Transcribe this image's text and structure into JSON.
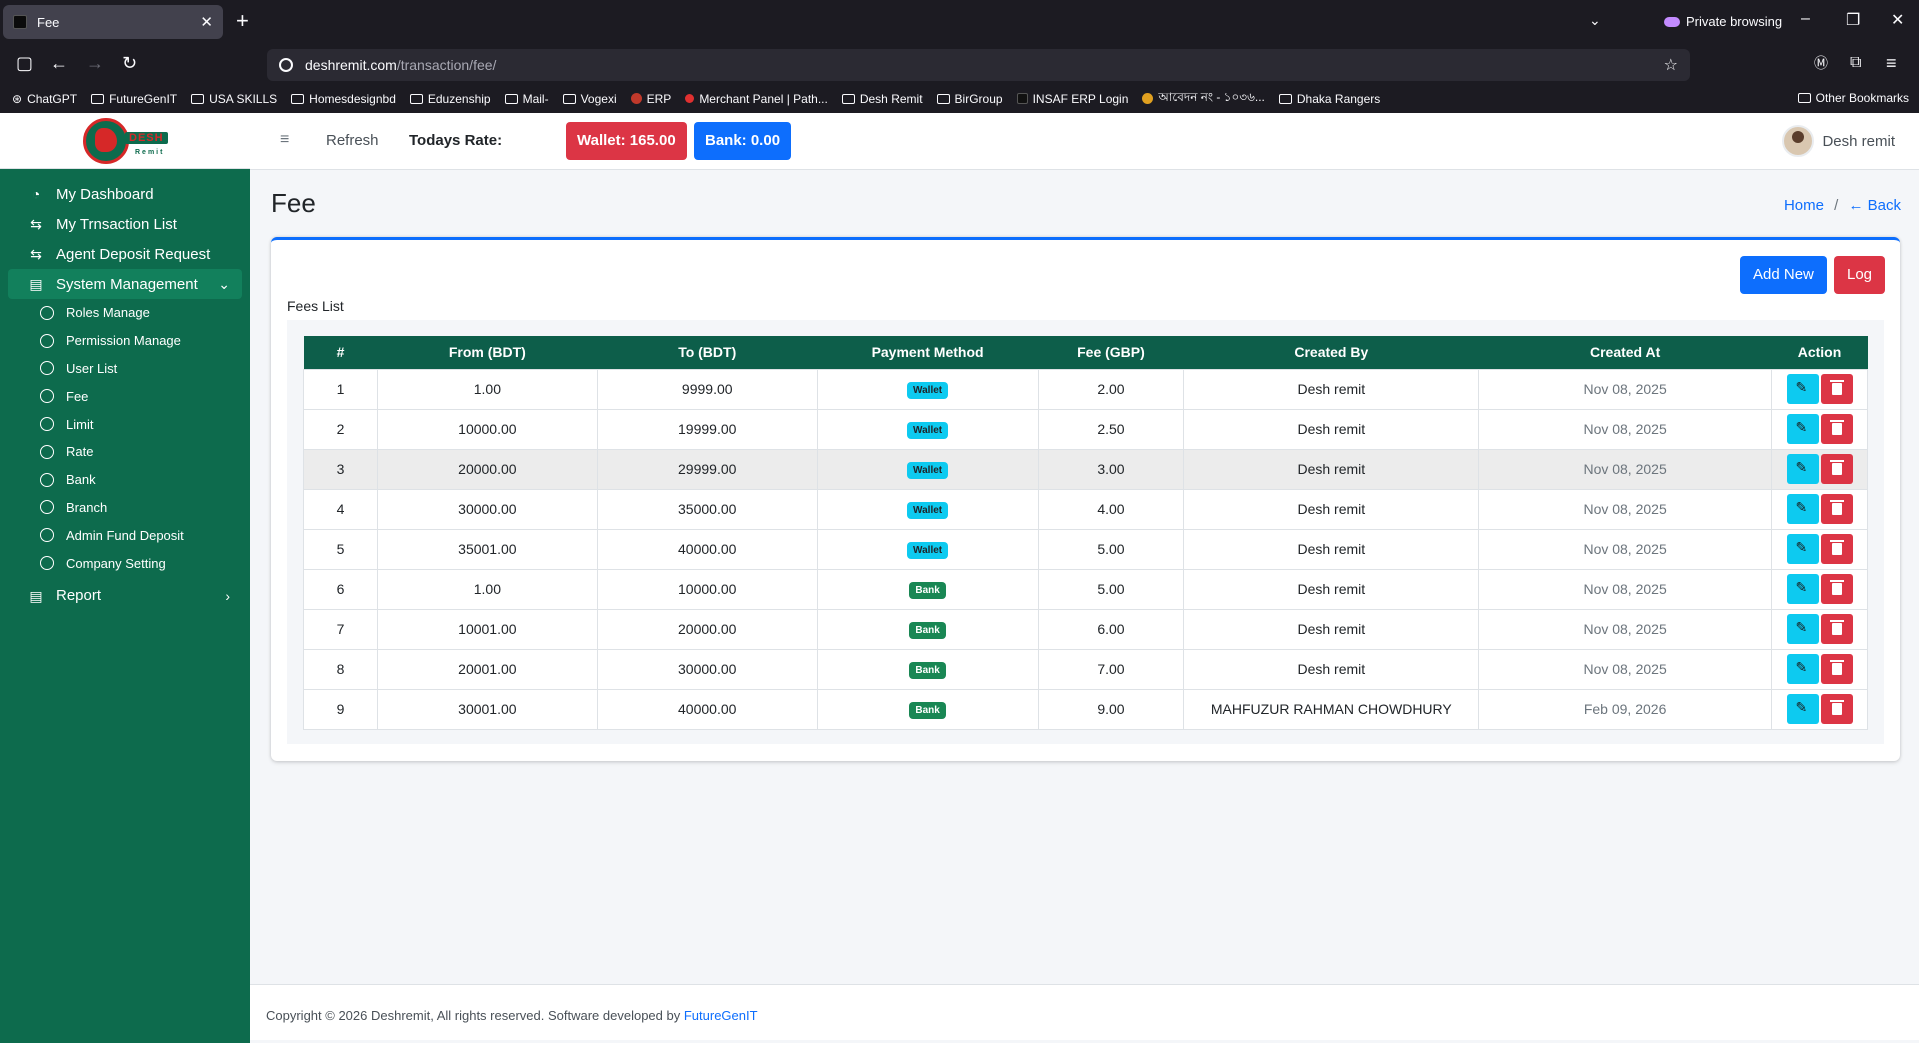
{
  "browser": {
    "tab_title": "Fee",
    "url_host": "deshremit.com",
    "url_path": "/transaction/fee/",
    "private_label": "Private browsing",
    "bookmarks": [
      "ChatGPT",
      "FutureGenIT",
      "USA SKILLS",
      "Homesdesignbd",
      "Eduzenship",
      "Mail-",
      "Vogexi",
      "ERP",
      "Merchant Panel | Path...",
      "Desh Remit",
      "BirGroup",
      "INSAF ERP Login",
      "আবেদন নং - ১০৩৬...",
      "Dhaka Rangers"
    ],
    "other_bookmarks": "Other Bookmarks"
  },
  "sidebar": {
    "brand": "DESH",
    "brand_sub": "Remit",
    "items": [
      {
        "label": "My Dashboard",
        "icon": "dashboard-icon"
      },
      {
        "label": "My Trnsaction List",
        "icon": "transfer-icon"
      },
      {
        "label": "Agent Deposit Request",
        "icon": "transfer-icon"
      },
      {
        "label": "System Management",
        "icon": "clipboard-icon"
      }
    ],
    "sub_items": [
      "Roles Manage",
      "Permission Manage",
      "User List",
      "Fee",
      "Limit",
      "Rate",
      "Bank",
      "Branch",
      "Admin Fund Deposit",
      "Company Setting"
    ],
    "report": "Report"
  },
  "topbar": {
    "refresh": "Refresh",
    "todays_rate": "Todays Rate:",
    "wallet": "Wallet: 165.00",
    "bank": "Bank: 0.00",
    "user": "Desh remit"
  },
  "page": {
    "title": "Fee",
    "breadcrumb_home": "Home",
    "breadcrumb_sep": "/",
    "breadcrumb_back": "← Back",
    "add_new": "Add New",
    "log": "Log",
    "list_label": "Fees List"
  },
  "table": {
    "headers": [
      "#",
      "From (BDT)",
      "To (BDT)",
      "Payment Method",
      "Fee (GBP)",
      "Created By",
      "Created At",
      "Action"
    ],
    "rows": [
      [
        "1",
        "1.00",
        "9999.00",
        "Wallet",
        "2.00",
        "Desh remit",
        "Nov 08, 2025"
      ],
      [
        "2",
        "10000.00",
        "19999.00",
        "Wallet",
        "2.50",
        "Desh remit",
        "Nov 08, 2025"
      ],
      [
        "3",
        "20000.00",
        "29999.00",
        "Wallet",
        "3.00",
        "Desh remit",
        "Nov 08, 2025"
      ],
      [
        "4",
        "30000.00",
        "35000.00",
        "Wallet",
        "4.00",
        "Desh remit",
        "Nov 08, 2025"
      ],
      [
        "5",
        "35001.00",
        "40000.00",
        "Wallet",
        "5.00",
        "Desh remit",
        "Nov 08, 2025"
      ],
      [
        "6",
        "1.00",
        "10000.00",
        "Bank",
        "5.00",
        "Desh remit",
        "Nov 08, 2025"
      ],
      [
        "7",
        "10001.00",
        "20000.00",
        "Bank",
        "6.00",
        "Desh remit",
        "Nov 08, 2025"
      ],
      [
        "8",
        "20001.00",
        "30000.00",
        "Bank",
        "7.00",
        "Desh remit",
        "Nov 08, 2025"
      ],
      [
        "9",
        "30001.00",
        "40000.00",
        "Bank",
        "9.00",
        "MAHFUZUR RAHMAN CHOWDHURY",
        "Feb 09, 2026"
      ]
    ]
  },
  "footer": {
    "text": "Copyright © 2026 Deshremit, All rights reserved. Software developed by",
    "link": "FutureGenIT"
  }
}
